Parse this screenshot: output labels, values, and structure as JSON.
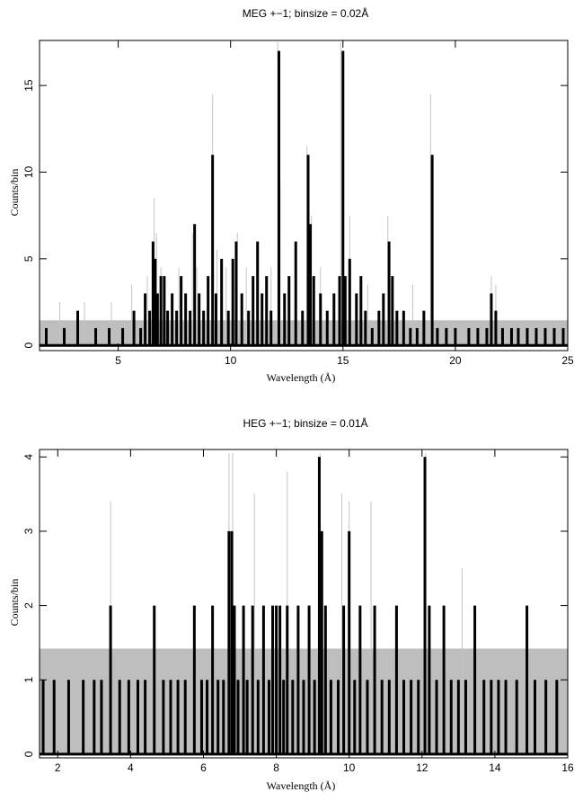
{
  "chart_data": [
    {
      "type": "line",
      "title": "MEG +−1; binsize = 0.02Å",
      "xlabel": "Wavelength (Å)",
      "ylabel": "Counts/bin",
      "xlim": [
        1.5,
        25
      ],
      "ylim": [
        -0.3,
        17.6
      ],
      "xticks": [
        5,
        10,
        15,
        20,
        25
      ],
      "yticks": [
        0,
        5,
        10,
        15
      ],
      "grid": false,
      "error_band_level": 1.45,
      "series": [
        {
          "style": "thick-black-histogram",
          "baseline": 0,
          "x": [
            1.8,
            2.6,
            3.2,
            4.0,
            4.6,
            5.2,
            5.7,
            6.0,
            6.2,
            6.4,
            6.55,
            6.65,
            6.75,
            6.9,
            7.05,
            7.2,
            7.4,
            7.6,
            7.8,
            8.0,
            8.2,
            8.4,
            8.6,
            8.8,
            9.0,
            9.2,
            9.35,
            9.6,
            9.9,
            10.1,
            10.25,
            10.5,
            10.8,
            11.0,
            11.2,
            11.4,
            11.6,
            11.8,
            12.15,
            12.4,
            12.6,
            12.9,
            13.2,
            13.45,
            13.55,
            13.7,
            14.0,
            14.3,
            14.6,
            14.85,
            15.0,
            15.1,
            15.3,
            15.6,
            15.8,
            16.0,
            16.3,
            16.6,
            16.8,
            17.05,
            17.2,
            17.4,
            17.7,
            18.0,
            18.3,
            18.6,
            18.97,
            19.2,
            19.6,
            20.0,
            20.6,
            21.0,
            21.4,
            21.6,
            21.8,
            22.1,
            22.5,
            22.8,
            23.2,
            23.6,
            24.0,
            24.4,
            24.8
          ],
          "y": [
            1,
            1,
            2,
            1,
            1,
            1,
            2,
            1,
            3,
            2,
            6,
            5,
            3,
            4,
            4,
            2,
            3,
            2,
            4,
            3,
            2,
            7,
            3,
            2,
            4,
            11,
            3,
            5,
            2,
            5,
            6,
            3,
            2,
            4,
            6,
            3,
            4,
            2,
            17,
            3,
            4,
            6,
            2,
            11,
            7,
            4,
            3,
            2,
            3,
            4,
            17,
            4,
            5,
            3,
            4,
            2,
            1,
            2,
            3,
            6,
            4,
            2,
            2,
            1,
            1,
            2,
            11,
            1,
            1,
            1,
            1,
            1,
            1,
            3,
            2,
            1,
            1,
            1,
            1,
            1,
            1,
            1,
            1
          ]
        },
        {
          "style": "thin-grey-spikes",
          "x": [
            2.4,
            3.5,
            4.7,
            5.6,
            6.3,
            6.6,
            6.7,
            6.9,
            7.7,
            8.3,
            8.5,
            9.2,
            9.4,
            9.8,
            10.3,
            10.7,
            11.2,
            11.8,
            12.1,
            12.2,
            12.9,
            13.4,
            13.6,
            14.0,
            14.9,
            15.0,
            15.3,
            16.1,
            17.0,
            17.2,
            18.1,
            18.9,
            19.0,
            21.6,
            21.8
          ],
          "y": [
            2.5,
            2.5,
            2.5,
            3.5,
            4,
            8.5,
            6.5,
            4.5,
            4.5,
            6.5,
            4.5,
            14.5,
            5.5,
            4.5,
            6.5,
            4.5,
            5.5,
            4.5,
            17.5,
            9.5,
            5.5,
            11.5,
            7.5,
            4.5,
            17.5,
            9.5,
            7.5,
            3.5,
            7.5,
            3.5,
            3.5,
            14.5,
            9.5,
            4,
            3.5
          ]
        }
      ]
    },
    {
      "type": "line",
      "title": "HEG +−1; binsize = 0.01Å",
      "xlabel": "Wavelength (Å)",
      "ylabel": "Counts/bin",
      "xlim": [
        1.5,
        16
      ],
      "ylim": [
        -0.05,
        4.1
      ],
      "xticks": [
        2,
        4,
        6,
        8,
        10,
        12,
        14,
        16
      ],
      "yticks": [
        0,
        1,
        2,
        3,
        4
      ],
      "grid": false,
      "error_band_level": 1.42,
      "series": [
        {
          "style": "thick-black-histogram",
          "baseline": 0,
          "x": [
            1.6,
            1.9,
            2.3,
            2.7,
            3.0,
            3.2,
            3.45,
            3.7,
            3.95,
            4.2,
            4.4,
            4.65,
            4.9,
            5.1,
            5.3,
            5.5,
            5.75,
            5.95,
            6.1,
            6.25,
            6.4,
            6.55,
            6.7,
            6.78,
            6.85,
            6.95,
            7.1,
            7.2,
            7.35,
            7.5,
            7.65,
            7.8,
            7.9,
            8.0,
            8.1,
            8.2,
            8.3,
            8.45,
            8.6,
            8.75,
            8.9,
            9.05,
            9.18,
            9.25,
            9.35,
            9.5,
            9.7,
            9.85,
            10.0,
            10.15,
            10.3,
            10.5,
            10.7,
            10.9,
            11.1,
            11.3,
            11.5,
            11.7,
            11.9,
            12.08,
            12.2,
            12.4,
            12.6,
            12.8,
            13.0,
            13.2,
            13.45,
            13.7,
            13.9,
            14.1,
            14.3,
            14.6,
            14.88,
            15.1,
            15.4,
            15.7
          ],
          "y": [
            1,
            1,
            1,
            1,
            1,
            1,
            2,
            1,
            1,
            1,
            1,
            2,
            1,
            1,
            1,
            1,
            2,
            1,
            1,
            2,
            1,
            1,
            3,
            3,
            2,
            1,
            2,
            1,
            2,
            1,
            2,
            1,
            2,
            2,
            2,
            1,
            2,
            1,
            2,
            1,
            2,
            1,
            4,
            3,
            2,
            1,
            1,
            2,
            3,
            1,
            2,
            1,
            2,
            1,
            1,
            2,
            1,
            1,
            1,
            4,
            2,
            1,
            2,
            1,
            1,
            1,
            2,
            1,
            1,
            1,
            1,
            1,
            2,
            1,
            1,
            1
          ]
        },
        {
          "style": "thin-grey-spikes",
          "x": [
            3.45,
            6.7,
            6.8,
            7.4,
            8.3,
            9.2,
            9.8,
            10.0,
            10.6,
            12.1,
            13.1
          ],
          "y": [
            3.4,
            4.05,
            4.05,
            3.5,
            3.8,
            4.05,
            3.5,
            3.4,
            3.4,
            4.05,
            2.5
          ]
        }
      ]
    }
  ]
}
